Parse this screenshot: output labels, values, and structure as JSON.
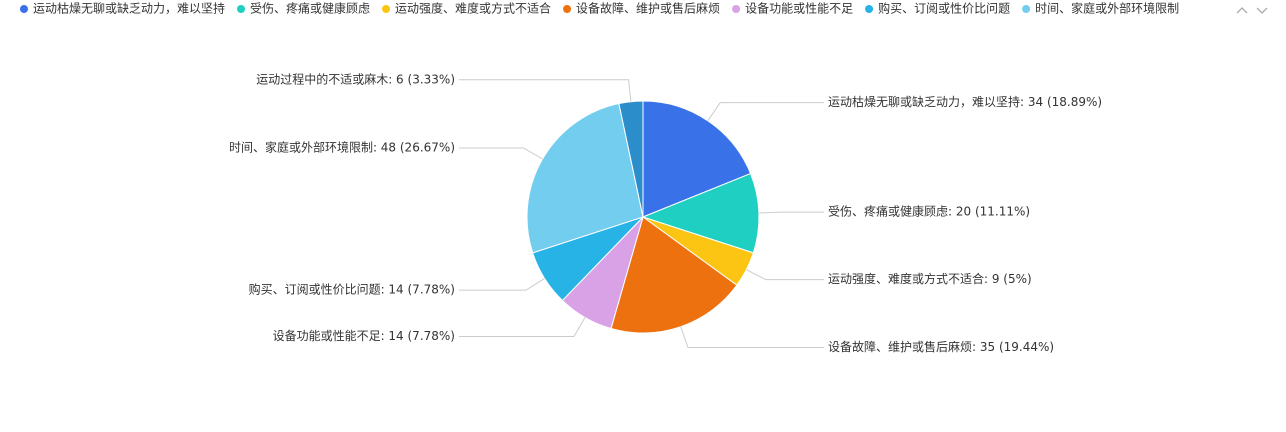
{
  "chart_data": {
    "type": "pie",
    "categories": [
      "运动枯燥无聊或缺乏动力，难以坚持",
      "受伤、疼痛或健康顾虑",
      "运动强度、难度或方式不适合",
      "设备故障、维护或售后麻烦",
      "设备功能或性能不足",
      "购买、订阅或性价比问题",
      "时间、家庭或外部环境限制",
      "运动过程中的不适或麻木"
    ],
    "values": [
      34,
      20,
      9,
      35,
      14,
      14,
      48,
      6
    ],
    "value_labels": [
      "运动枯燥无聊或缺乏动力，难以坚持: 34 (18.89%)",
      "受伤、疼痛或健康顾虑: 20 (11.11%)",
      "运动强度、难度或方式不适合: 9 (5%)",
      "设备故障、维护或售后麻烦: 35 (19.44%)",
      "设备功能或性能不足: 14 (7.78%)",
      "购买、订阅或性价比问题: 14 (7.78%)",
      "时间、家庭或外部环境限制: 48 (26.67%)",
      "运动过程中的不适或麻木: 6 (3.33%)"
    ],
    "colors": [
      "#3871e8",
      "#1ecfc2",
      "#fcc514",
      "#ee7110",
      "#d9a2e6",
      "#28b3e6",
      "#72cdee",
      "#2b8ecb"
    ],
    "legend": "top"
  }
}
